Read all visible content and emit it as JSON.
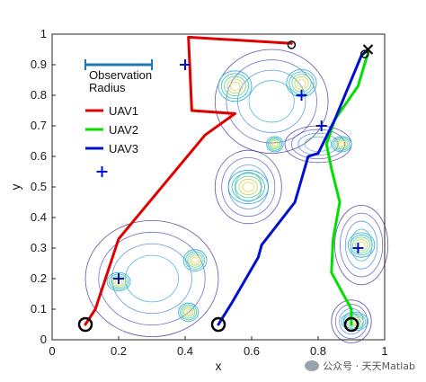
{
  "chart_data": {
    "type": "line",
    "xlabel": "x",
    "ylabel": "y",
    "xlim": [
      0,
      1
    ],
    "ylim": [
      0,
      1
    ],
    "xticks": [
      "0",
      "0.2",
      "0.4",
      "0.6",
      "0.8",
      "1"
    ],
    "yticks": [
      "0",
      "0.1",
      "0.2",
      "0.3",
      "0.4",
      "0.5",
      "0.6",
      "0.7",
      "0.8",
      "0.9",
      "1"
    ],
    "grid": false,
    "legend": {
      "placement": "top-left",
      "observation_label_line1": "Observation",
      "observation_label_line2": "Radius",
      "observation_color": "#1f77b4",
      "observation_extent": [
        0.1,
        0.3,
        0.9
      ]
    },
    "series": [
      {
        "name": "UAV1",
        "color": "#e00000",
        "points": [
          [
            0.1,
            0.05
          ],
          [
            0.13,
            0.1
          ],
          [
            0.2,
            0.33
          ],
          [
            0.46,
            0.67
          ],
          [
            0.55,
            0.74
          ],
          [
            0.42,
            0.75
          ],
          [
            0.41,
            0.99
          ],
          [
            0.72,
            0.97
          ]
        ]
      },
      {
        "name": "UAV2",
        "color": "#00e000",
        "points": [
          [
            0.9,
            0.05
          ],
          [
            0.9,
            0.1
          ],
          [
            0.84,
            0.22
          ],
          [
            0.845,
            0.33
          ],
          [
            0.865,
            0.45
          ],
          [
            0.84,
            0.56
          ],
          [
            0.825,
            0.64
          ],
          [
            0.85,
            0.72
          ],
          [
            0.92,
            0.83
          ],
          [
            0.95,
            0.94
          ]
        ]
      },
      {
        "name": "UAV3",
        "color": "#0010d0",
        "points": [
          [
            0.5,
            0.05
          ],
          [
            0.54,
            0.12
          ],
          [
            0.62,
            0.27
          ],
          [
            0.63,
            0.31
          ],
          [
            0.73,
            0.45
          ],
          [
            0.77,
            0.6
          ],
          [
            0.8,
            0.61
          ],
          [
            0.85,
            0.72
          ],
          [
            0.93,
            0.93
          ],
          [
            0.95,
            0.95
          ]
        ]
      }
    ],
    "start_points": [
      [
        0.1,
        0.05
      ],
      [
        0.5,
        0.05
      ],
      [
        0.9,
        0.05
      ]
    ],
    "end_circle": [
      0.72,
      0.965
    ],
    "end_circle2": [
      0.94,
      0.935
    ],
    "end_cross": [
      0.95,
      0.95
    ],
    "targets": [
      [
        0.15,
        0.55
      ],
      [
        0.2,
        0.2
      ],
      [
        0.4,
        0.9
      ],
      [
        0.75,
        0.8
      ],
      [
        0.81,
        0.7
      ],
      [
        0.92,
        0.3
      ]
    ],
    "target_color": "#0010d0",
    "contour_peaks": [
      {
        "x": 0.2,
        "y": 0.19,
        "rx": 0.035,
        "ry": 0.03
      },
      {
        "x": 0.43,
        "y": 0.26,
        "rx": 0.035,
        "ry": 0.035
      },
      {
        "x": 0.41,
        "y": 0.09,
        "rx": 0.03,
        "ry": 0.03
      },
      {
        "x": 0.59,
        "y": 0.5,
        "rx": 0.06,
        "ry": 0.055
      },
      {
        "x": 0.55,
        "y": 0.83,
        "rx": 0.05,
        "ry": 0.05
      },
      {
        "x": 0.75,
        "y": 0.84,
        "rx": 0.045,
        "ry": 0.045
      },
      {
        "x": 0.67,
        "y": 0.64,
        "rx": 0.025,
        "ry": 0.025
      },
      {
        "x": 0.87,
        "y": 0.64,
        "rx": 0.03,
        "ry": 0.025
      },
      {
        "x": 0.93,
        "y": 0.31,
        "rx": 0.04,
        "ry": 0.04
      },
      {
        "x": 0.91,
        "y": 0.06,
        "rx": 0.04,
        "ry": 0.03
      }
    ],
    "contour_blobs": [
      {
        "cx": 0.3,
        "cy": 0.2,
        "rx": 0.2,
        "ry": 0.19
      },
      {
        "cx": 0.59,
        "cy": 0.5,
        "rx": 0.1,
        "ry": 0.12
      },
      {
        "cx": 0.66,
        "cy": 0.78,
        "rx": 0.17,
        "ry": 0.17
      },
      {
        "cx": 0.8,
        "cy": 0.64,
        "rx": 0.1,
        "ry": 0.06
      },
      {
        "cx": 0.93,
        "cy": 0.31,
        "rx": 0.08,
        "ry": 0.13
      },
      {
        "cx": 0.9,
        "cy": 0.06,
        "rx": 0.06,
        "ry": 0.07
      }
    ]
  },
  "watermark": "公众号 · 天天Matlab"
}
